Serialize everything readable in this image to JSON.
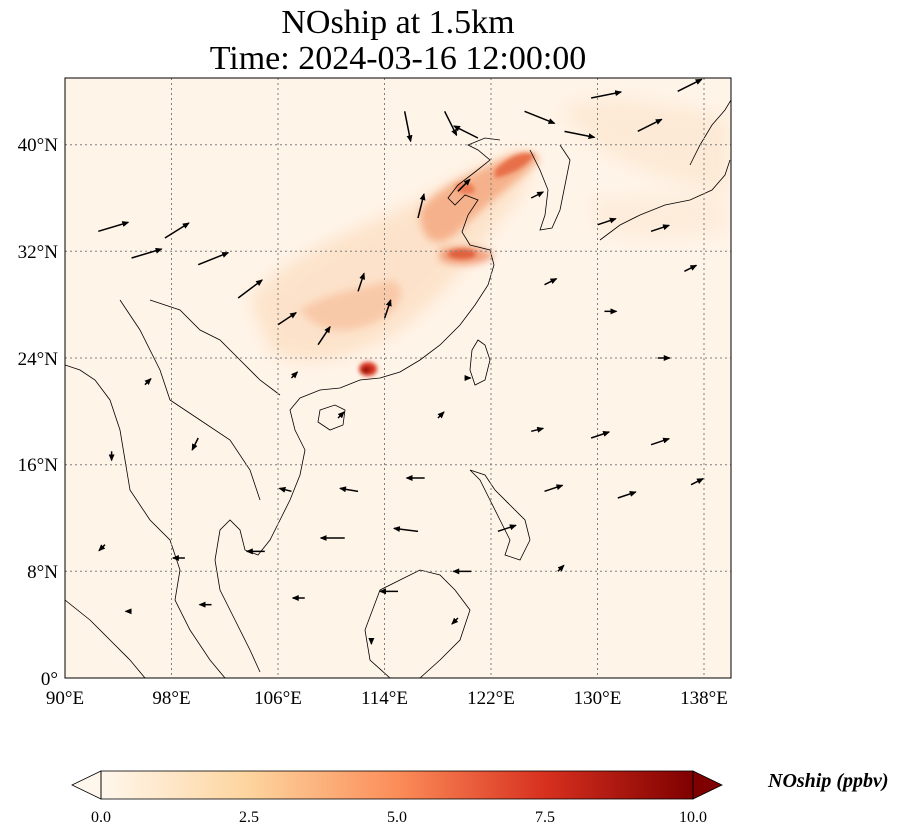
{
  "title": {
    "line1": "NOship at 1.5km",
    "line2": "Time: 2024-03-16 12:00:00"
  },
  "axes": {
    "x_ticks": [
      "90°E",
      "98°E",
      "106°E",
      "114°E",
      "122°E",
      "130°E",
      "138°E"
    ],
    "y_ticks": [
      "0°",
      "8°N",
      "16°N",
      "24°N",
      "32°N",
      "40°N"
    ]
  },
  "colorbar": {
    "label": "NOship (ppbv)",
    "ticks": [
      "0.0",
      "2.5",
      "5.0",
      "7.5",
      "10.0"
    ],
    "colormap": "OrRd",
    "min": 0,
    "max": 10,
    "extend": "both"
  },
  "colors": {
    "background_fill": "#fff4e8",
    "plume_light": "#fbd5b2",
    "plume_mid": "#f08c62",
    "plume_strong": "#d7301f",
    "hotspot": "#7f0000",
    "coastline": "#000000",
    "gridline": "#7f7f7f"
  },
  "map_extent": {
    "lon": [
      90,
      140
    ],
    "lat": [
      0,
      45
    ]
  },
  "chart_data": {
    "type": "heatmap",
    "variable": "NOship",
    "units": "ppbv",
    "level": "1.5km",
    "time": "2024-03-16 12:00:00",
    "value_range": [
      0,
      10
    ],
    "concentration_features": [
      {
        "lon": 118.5,
        "lat": 35.5,
        "value": 3.5
      },
      {
        "lon": 121.5,
        "lat": 38.5,
        "value": 4.5
      },
      {
        "lon": 120.5,
        "lat": 31.8,
        "value": 4.0
      },
      {
        "lon": 113.5,
        "lat": 22.8,
        "value": 7.5
      },
      {
        "lon": 116.0,
        "lat": 28.0,
        "value": 2.5
      },
      {
        "lon": 111.0,
        "lat": 29.0,
        "value": 1.5
      },
      {
        "lon": 126.5,
        "lat": 40.0,
        "value": 1.5
      }
    ],
    "wind_vectors": [
      {
        "lon": 92.5,
        "lat": 33.5,
        "u": 5,
        "v": 1.5
      },
      {
        "lon": 95.0,
        "lat": 31.5,
        "u": 5,
        "v": 1.5
      },
      {
        "lon": 97.5,
        "lat": 33.0,
        "u": 4,
        "v": 2.5
      },
      {
        "lon": 100.0,
        "lat": 31.0,
        "u": 5,
        "v": 2
      },
      {
        "lon": 103.0,
        "lat": 28.5,
        "u": 4,
        "v": 3
      },
      {
        "lon": 106.0,
        "lat": 26.5,
        "u": 3,
        "v": 2
      },
      {
        "lon": 109.0,
        "lat": 25.0,
        "u": 2,
        "v": 3
      },
      {
        "lon": 112.0,
        "lat": 29.0,
        "u": 1,
        "v": 3
      },
      {
        "lon": 114.0,
        "lat": 27.0,
        "u": 1,
        "v": 3
      },
      {
        "lon": 116.5,
        "lat": 34.5,
        "u": 1,
        "v": 4
      },
      {
        "lon": 118.5,
        "lat": 42.5,
        "u": 2,
        "v": -4
      },
      {
        "lon": 115.5,
        "lat": 42.5,
        "u": 1,
        "v": -5
      },
      {
        "lon": 119.5,
        "lat": 36.5,
        "u": 2,
        "v": 2
      },
      {
        "lon": 121.0,
        "lat": 40.5,
        "u": -4,
        "v": 2
      },
      {
        "lon": 124.5,
        "lat": 42.5,
        "u": 5,
        "v": -2
      },
      {
        "lon": 127.5,
        "lat": 41.0,
        "u": 5,
        "v": -1
      },
      {
        "lon": 129.5,
        "lat": 43.5,
        "u": 5,
        "v": 1
      },
      {
        "lon": 133.0,
        "lat": 41.0,
        "u": 4,
        "v": 2
      },
      {
        "lon": 136.0,
        "lat": 44.0,
        "u": 4,
        "v": 2
      },
      {
        "lon": 125.0,
        "lat": 36.0,
        "u": 2,
        "v": 1
      },
      {
        "lon": 130.0,
        "lat": 34.0,
        "u": 3,
        "v": 1
      },
      {
        "lon": 134.0,
        "lat": 33.5,
        "u": 3,
        "v": 1
      },
      {
        "lon": 136.5,
        "lat": 30.5,
        "u": 2,
        "v": 1
      },
      {
        "lon": 126.0,
        "lat": 29.5,
        "u": 2,
        "v": 1
      },
      {
        "lon": 130.5,
        "lat": 27.5,
        "u": 2,
        "v": 0
      },
      {
        "lon": 134.5,
        "lat": 24.0,
        "u": 2,
        "v": 0
      },
      {
        "lon": 125.0,
        "lat": 18.5,
        "u": 2,
        "v": 0.5
      },
      {
        "lon": 129.5,
        "lat": 18.0,
        "u": 3,
        "v": 1
      },
      {
        "lon": 134.0,
        "lat": 17.5,
        "u": 3,
        "v": 1
      },
      {
        "lon": 126.0,
        "lat": 14.0,
        "u": 3,
        "v": 1
      },
      {
        "lon": 131.5,
        "lat": 13.5,
        "u": 3,
        "v": 1
      },
      {
        "lon": 137.0,
        "lat": 14.5,
        "u": 2,
        "v": 1
      },
      {
        "lon": 117.0,
        "lat": 15.0,
        "u": -3,
        "v": 0
      },
      {
        "lon": 112.0,
        "lat": 14.0,
        "u": -3,
        "v": 0.5
      },
      {
        "lon": 107.0,
        "lat": 14.0,
        "u": -2,
        "v": 0.5
      },
      {
        "lon": 116.5,
        "lat": 11.0,
        "u": -4,
        "v": 0.5
      },
      {
        "lon": 111.0,
        "lat": 10.5,
        "u": -4,
        "v": 0
      },
      {
        "lon": 105.0,
        "lat": 9.5,
        "u": -3,
        "v": 0
      },
      {
        "lon": 99.0,
        "lat": 9.0,
        "u": -2,
        "v": 0
      },
      {
        "lon": 93.0,
        "lat": 10.0,
        "u": -1,
        "v": -1
      },
      {
        "lon": 120.5,
        "lat": 8.0,
        "u": -3,
        "v": 0
      },
      {
        "lon": 115.0,
        "lat": 6.5,
        "u": -3,
        "v": 0
      },
      {
        "lon": 108.0,
        "lat": 6.0,
        "u": -2,
        "v": 0
      },
      {
        "lon": 101.0,
        "lat": 5.5,
        "u": -2,
        "v": 0
      },
      {
        "lon": 95.0,
        "lat": 5.0,
        "u": -1,
        "v": 0
      },
      {
        "lon": 127.0,
        "lat": 8.0,
        "u": 1,
        "v": 1
      },
      {
        "lon": 122.5,
        "lat": 11.0,
        "u": 3,
        "v": 1
      },
      {
        "lon": 119.5,
        "lat": 4.5,
        "u": -1,
        "v": -1
      },
      {
        "lon": 113.0,
        "lat": 3.0,
        "u": 0,
        "v": -1
      },
      {
        "lon": 100.0,
        "lat": 18.0,
        "u": -1,
        "v": -2
      },
      {
        "lon": 96.0,
        "lat": 22.0,
        "u": 1,
        "v": 1
      },
      {
        "lon": 93.5,
        "lat": 17.0,
        "u": 0,
        "v": -1.5
      },
      {
        "lon": 107.0,
        "lat": 22.5,
        "u": 1,
        "v": 1
      },
      {
        "lon": 110.5,
        "lat": 19.5,
        "u": 1,
        "v": 1
      },
      {
        "lon": 118.0,
        "lat": 19.5,
        "u": 1,
        "v": 1
      },
      {
        "lon": 120.0,
        "lat": 22.5,
        "u": 1,
        "v": 0
      }
    ]
  }
}
